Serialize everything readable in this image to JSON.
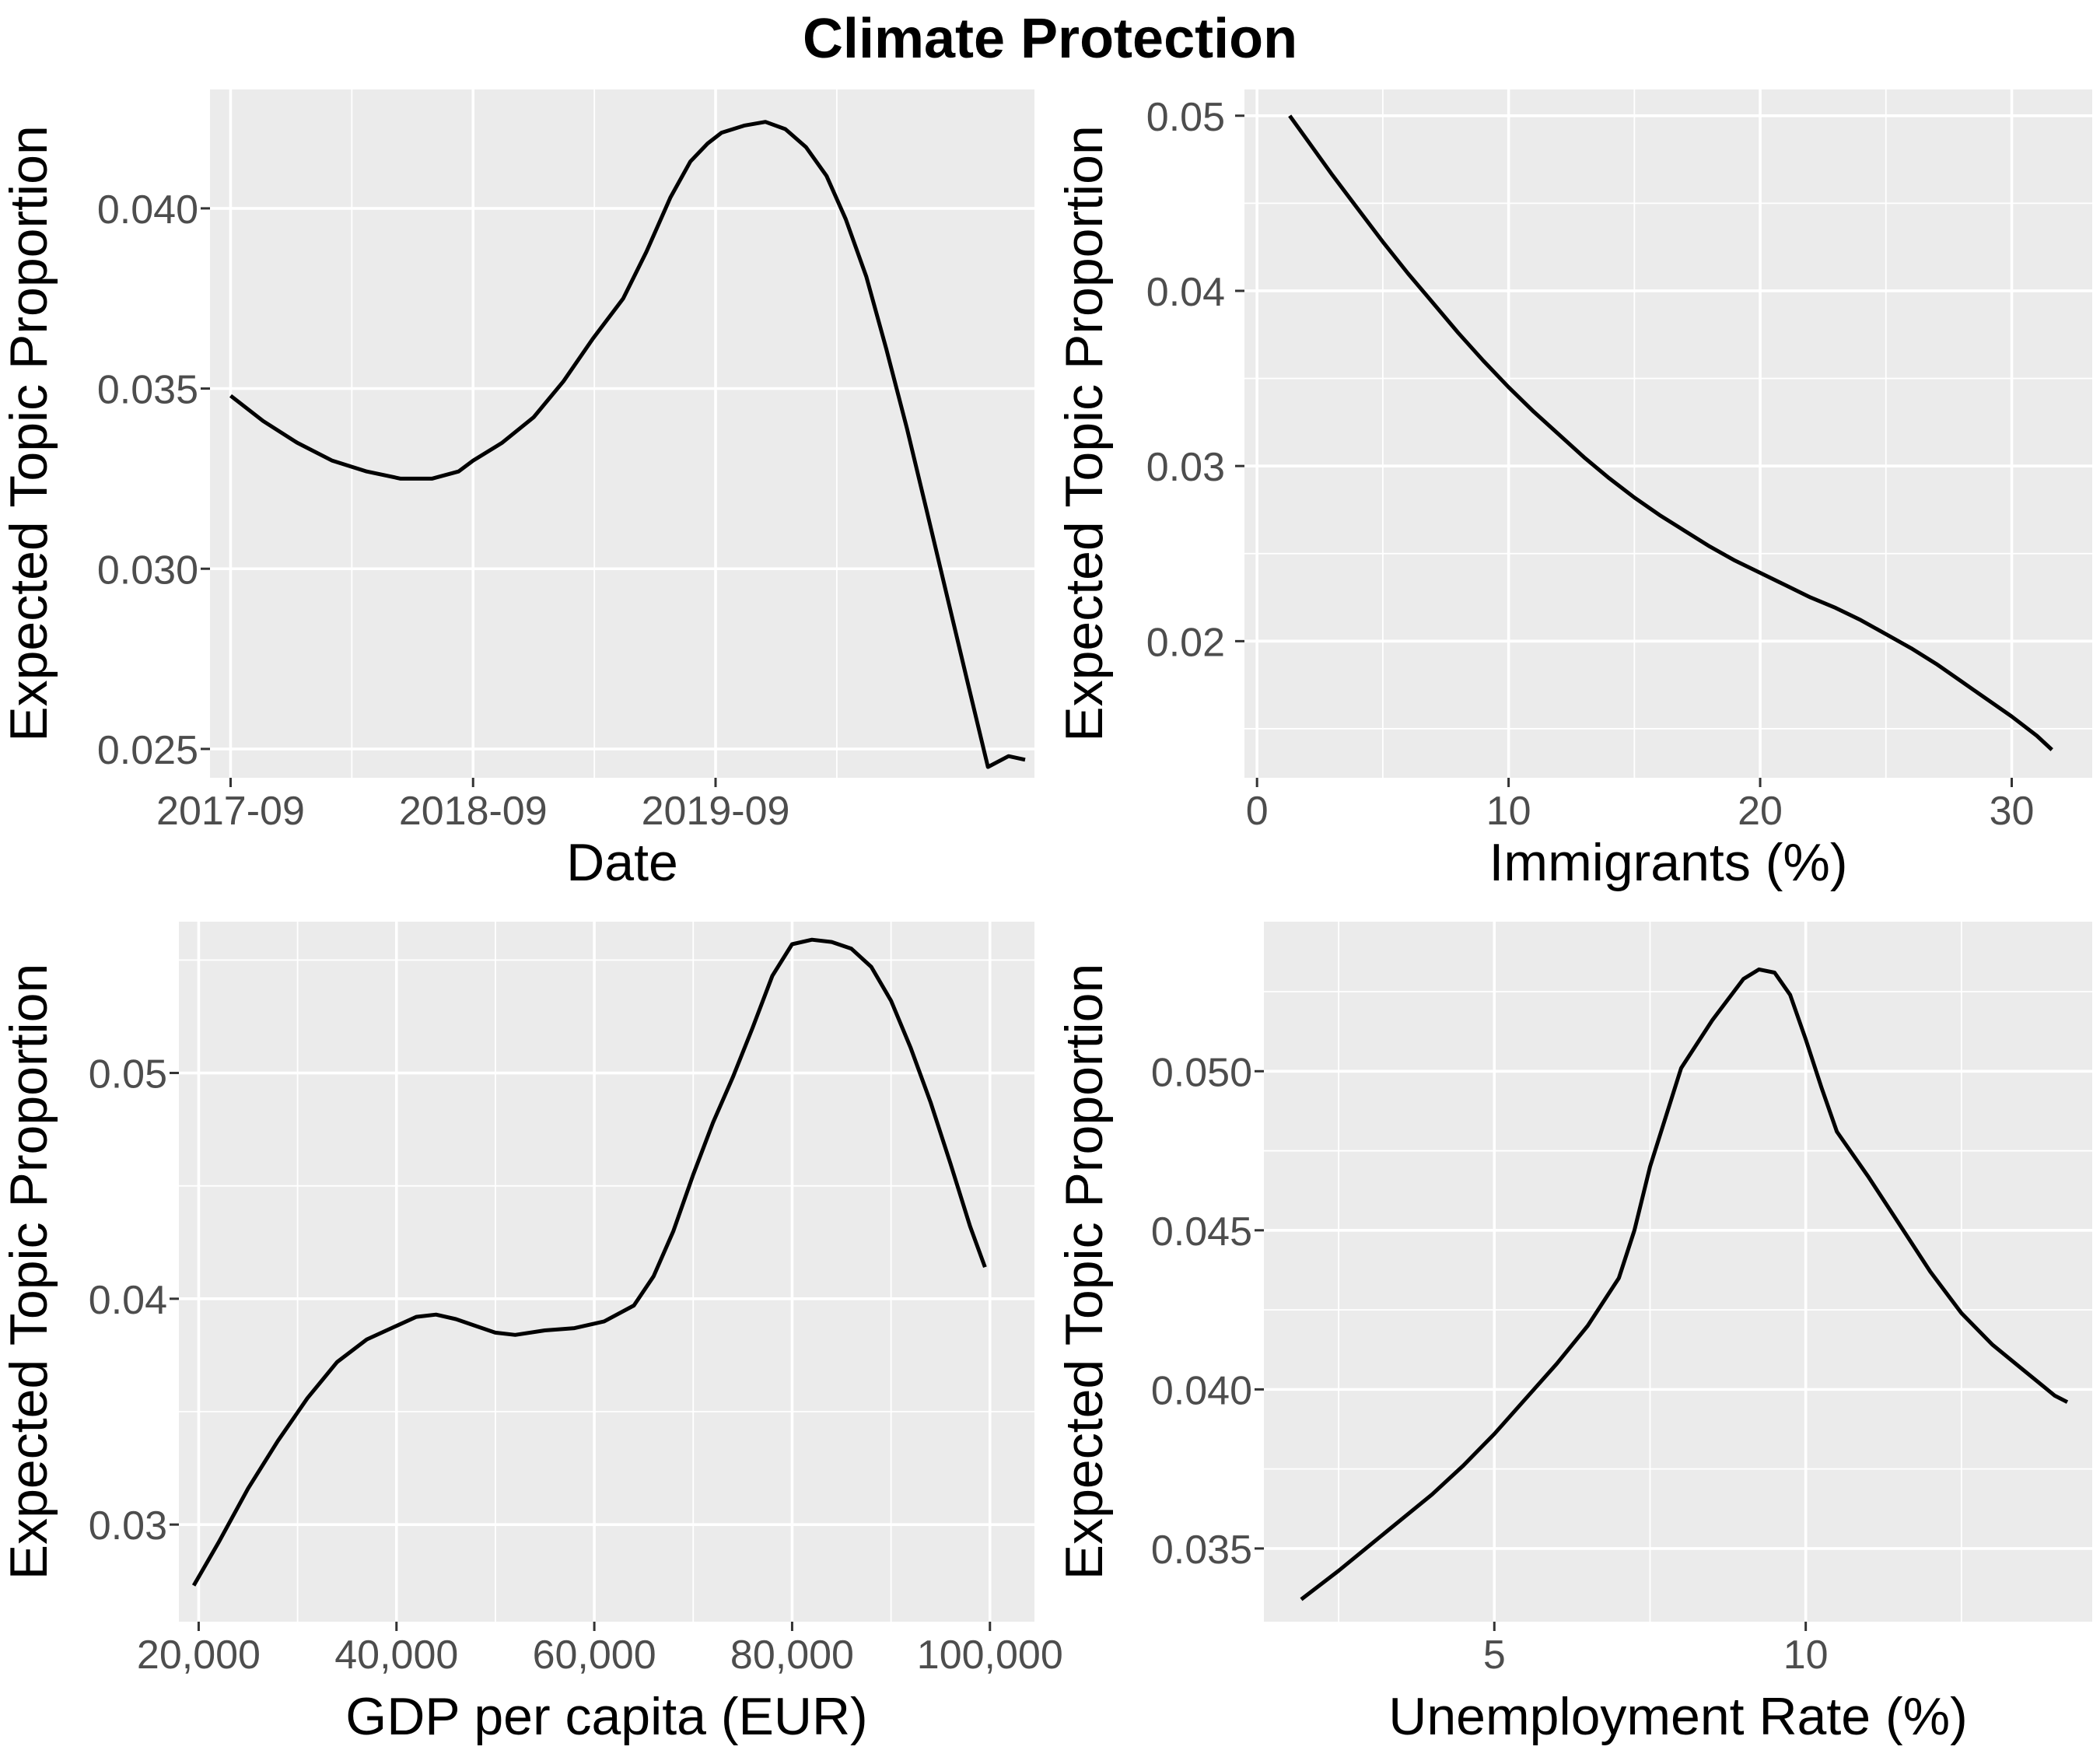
{
  "figure": {
    "title": "Climate Protection"
  },
  "chart_data": [
    {
      "type": "line",
      "xlabel": "Date",
      "ylabel": "Expected Topic Proportion",
      "x_scale": "date",
      "xlim": [
        "2017-08-01",
        "2020-12-24"
      ],
      "ylim": [
        0.0242,
        0.0433
      ],
      "x_ticks": [
        "2017-09",
        "2018-09",
        "2019-09"
      ],
      "y_ticks": [
        0.025,
        0.03,
        0.035,
        0.04
      ],
      "y_tick_labels": [
        "0.025",
        "0.030",
        "0.035",
        "0.040"
      ],
      "grid": true,
      "series": [
        {
          "x": [
            "2017-09-01",
            "2017-10-20",
            "2017-12-10",
            "2018-02-01",
            "2018-03-25",
            "2018-05-15",
            "2018-07-01",
            "2018-08-10",
            "2018-09-01",
            "2018-10-15",
            "2018-12-01",
            "2019-01-15",
            "2019-03-01",
            "2019-04-15",
            "2019-05-20",
            "2019-06-25",
            "2019-07-25",
            "2019-08-20",
            "2019-09-10",
            "2019-10-15",
            "2019-11-15",
            "2019-12-15",
            "2020-01-15",
            "2020-02-15",
            "2020-03-15",
            "2020-04-15",
            "2020-05-15",
            "2020-06-15",
            "2020-07-15",
            "2020-08-15",
            "2020-09-15",
            "2020-10-15",
            "2020-11-15",
            "2020-12-10"
          ],
          "y": [
            0.0348,
            0.0341,
            0.0335,
            0.033,
            0.0327,
            0.0325,
            0.0325,
            0.0327,
            0.033,
            0.0335,
            0.0342,
            0.0352,
            0.0364,
            0.0375,
            0.0388,
            0.0403,
            0.0413,
            0.0418,
            0.0421,
            0.0423,
            0.0424,
            0.0422,
            0.0417,
            0.0409,
            0.0397,
            0.0381,
            0.0361,
            0.0339,
            0.0316,
            0.0292,
            0.0268,
            0.0245,
            0.0248,
            0.0247
          ]
        }
      ]
    },
    {
      "type": "line",
      "xlabel": "Immigrants (%)",
      "ylabel": "Expected Topic Proportion",
      "xlim": [
        -0.5,
        33.2
      ],
      "ylim": [
        0.0122,
        0.0515
      ],
      "x_ticks": [
        0,
        10,
        20,
        30
      ],
      "y_ticks": [
        0.02,
        0.03,
        0.04,
        0.05
      ],
      "y_tick_labels": [
        "0.02",
        "0.03",
        "0.04",
        "0.05"
      ],
      "grid": true,
      "series": [
        {
          "x": [
            1.3,
            2,
            3,
            4,
            5,
            6,
            7,
            8,
            9,
            10,
            11,
            12,
            13,
            14,
            15,
            16,
            17,
            18,
            19,
            20,
            21,
            22,
            23,
            24,
            25,
            26,
            27,
            28,
            29,
            30,
            31,
            31.6
          ],
          "y": [
            0.05,
            0.0486,
            0.0466,
            0.0447,
            0.0428,
            0.041,
            0.0393,
            0.0376,
            0.036,
            0.0345,
            0.0331,
            0.0318,
            0.0305,
            0.0293,
            0.0282,
            0.0272,
            0.0263,
            0.0254,
            0.0246,
            0.0239,
            0.0232,
            0.0225,
            0.0219,
            0.0212,
            0.0204,
            0.0196,
            0.0187,
            0.0177,
            0.0167,
            0.0157,
            0.0146,
            0.0138
          ]
        }
      ]
    },
    {
      "type": "line",
      "xlabel": "GDP per capita (EUR)",
      "ylabel": "Expected Topic Proportion",
      "xlim": [
        18000,
        104500
      ],
      "ylim": [
        0.0257,
        0.0567
      ],
      "x_ticks": [
        20000,
        40000,
        60000,
        80000,
        100000
      ],
      "x_tick_labels": [
        "20,000",
        "40,000",
        "60,000",
        "80,000",
        "100,000"
      ],
      "y_ticks": [
        0.03,
        0.04,
        0.05
      ],
      "y_tick_labels": [
        "0.03",
        "0.04",
        "0.05"
      ],
      "grid": true,
      "series": [
        {
          "x": [
            19500,
            22000,
            25000,
            28000,
            31000,
            34000,
            37000,
            40000,
            42000,
            44000,
            46000,
            48000,
            50000,
            52000,
            55000,
            58000,
            61000,
            64000,
            66000,
            68000,
            70000,
            72000,
            74000,
            76000,
            78000,
            80000,
            82000,
            84000,
            86000,
            88000,
            90000,
            92000,
            94000,
            96000,
            98000,
            99500
          ],
          "y": [
            0.0273,
            0.0292,
            0.0316,
            0.0337,
            0.0356,
            0.0372,
            0.0382,
            0.0388,
            0.0392,
            0.0393,
            0.0391,
            0.0388,
            0.0385,
            0.0384,
            0.0386,
            0.0387,
            0.039,
            0.0397,
            0.041,
            0.043,
            0.0455,
            0.0478,
            0.0498,
            0.052,
            0.0543,
            0.0557,
            0.0559,
            0.0558,
            0.0555,
            0.0547,
            0.0532,
            0.0511,
            0.0487,
            0.046,
            0.0432,
            0.0414
          ]
        }
      ]
    },
    {
      "type": "line",
      "xlabel": "Unemployment Rate (%)",
      "ylabel": "Expected Topic Proportion",
      "xlim": [
        1.3,
        14.6
      ],
      "ylim": [
        0.0327,
        0.0547
      ],
      "x_ticks": [
        5,
        10
      ],
      "y_ticks": [
        0.035,
        0.04,
        0.045,
        0.05
      ],
      "y_tick_labels": [
        "0.035",
        "0.040",
        "0.045",
        "0.050"
      ],
      "grid": true,
      "series": [
        {
          "x": [
            1.9,
            2.5,
            3,
            3.5,
            4,
            4.5,
            5,
            5.5,
            6,
            6.5,
            7,
            7.25,
            7.5,
            8,
            8.5,
            9,
            9.25,
            9.5,
            9.75,
            10,
            10.25,
            10.5,
            11,
            11.5,
            12,
            12.5,
            13,
            13.5,
            14,
            14.2
          ],
          "y": [
            0.0334,
            0.0343,
            0.0351,
            0.0359,
            0.0367,
            0.0376,
            0.0386,
            0.0397,
            0.0408,
            0.042,
            0.0435,
            0.045,
            0.047,
            0.0501,
            0.0516,
            0.0529,
            0.0532,
            0.0531,
            0.0524,
            0.051,
            0.0495,
            0.0481,
            0.0467,
            0.0452,
            0.0437,
            0.0424,
            0.0414,
            0.0406,
            0.0398,
            0.0396
          ]
        }
      ]
    }
  ]
}
